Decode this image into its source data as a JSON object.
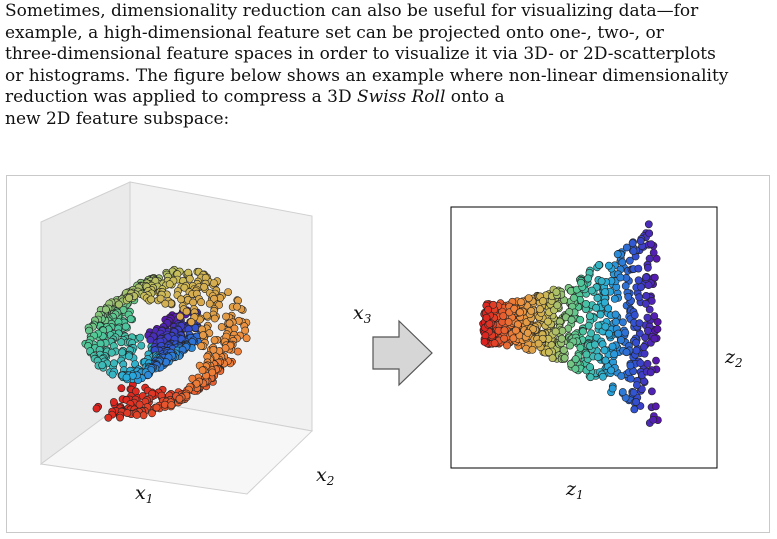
{
  "paragraph": {
    "line1": "Sometimes, dimensionality reduction can also be useful for visualizing data—for",
    "line2": "example, a high-dimensional feature set can be projected onto one-, two-, or",
    "line3": "three-dimensional feature spaces in order to visualize it via 3D- or 2D-scatterplots",
    "line4": "or histograms. The figure below shows an example where non-linear dimensionality",
    "line5_before": "reduction was applied to compress a 3D ",
    "line5_emph": "Swiss Roll",
    "line5_after": " onto a",
    "line6": "new 2D feature subspace:"
  },
  "figure": {
    "left_panel": {
      "axis_x1": {
        "base": "x",
        "sub": "1"
      },
      "axis_x2": {
        "base": "x",
        "sub": "2"
      },
      "axis_x3": {
        "base": "x",
        "sub": "3"
      }
    },
    "arrow_icon": "right-arrow-icon",
    "right_panel": {
      "axis_z1": {
        "base": "z",
        "sub": "1"
      },
      "axis_z2": {
        "base": "z",
        "sub": "2"
      }
    }
  }
}
